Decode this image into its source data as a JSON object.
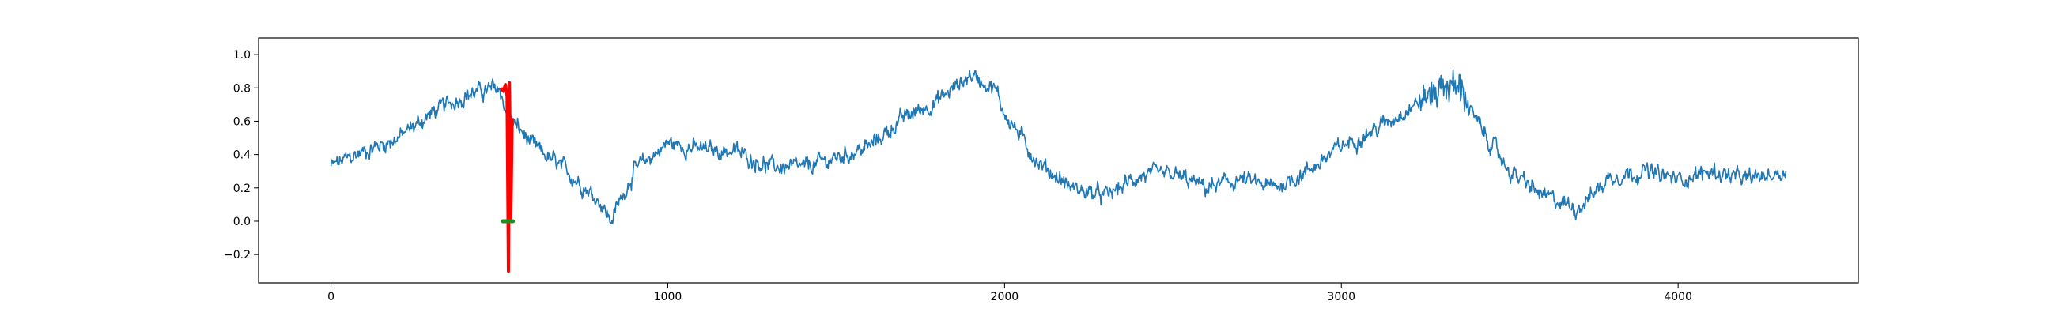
{
  "chart_data": {
    "type": "line",
    "title": "",
    "xlabel": "",
    "ylabel": "",
    "xlim": [
      -215,
      4535
    ],
    "ylim": [
      -0.37,
      1.1
    ],
    "grid": false,
    "legend": "none",
    "x_ticks": [
      0,
      1000,
      2000,
      3000,
      4000
    ],
    "x_tick_labels": [
      "0",
      "1000",
      "2000",
      "3000",
      "4000"
    ],
    "y_ticks": [
      -0.2,
      0.0,
      0.2,
      0.4,
      0.6,
      0.8,
      1.0
    ],
    "y_tick_labels": [
      "−0.2",
      "0.0",
      "0.2",
      "0.4",
      "0.6",
      "0.8",
      "1.0"
    ],
    "series": [
      {
        "color": "#1f77b4",
        "style": "noisy-line",
        "x_range": [
          0,
          4320
        ],
        "trend": [
          [
            0,
            0.33
          ],
          [
            100,
            0.42
          ],
          [
            200,
            0.5
          ],
          [
            300,
            0.65
          ],
          [
            400,
            0.76
          ],
          [
            500,
            0.8
          ],
          [
            525,
            0.62
          ],
          [
            560,
            0.55
          ],
          [
            600,
            0.45
          ],
          [
            700,
            0.3
          ],
          [
            800,
            0.12
          ],
          [
            830,
            0.0
          ],
          [
            900,
            0.3
          ],
          [
            1000,
            0.47
          ],
          [
            1100,
            0.43
          ],
          [
            1200,
            0.42
          ],
          [
            1300,
            0.33
          ],
          [
            1400,
            0.32
          ],
          [
            1500,
            0.38
          ],
          [
            1600,
            0.45
          ],
          [
            1700,
            0.62
          ],
          [
            1800,
            0.72
          ],
          [
            1900,
            0.88
          ],
          [
            1970,
            0.8
          ],
          [
            2000,
            0.65
          ],
          [
            2100,
            0.35
          ],
          [
            2200,
            0.2
          ],
          [
            2300,
            0.15
          ],
          [
            2400,
            0.27
          ],
          [
            2500,
            0.28
          ],
          [
            2600,
            0.2
          ],
          [
            2700,
            0.25
          ],
          [
            2800,
            0.2
          ],
          [
            2900,
            0.3
          ],
          [
            3000,
            0.45
          ],
          [
            3100,
            0.55
          ],
          [
            3200,
            0.68
          ],
          [
            3300,
            0.8
          ],
          [
            3350,
            0.82
          ],
          [
            3400,
            0.6
          ],
          [
            3500,
            0.3
          ],
          [
            3600,
            0.15
          ],
          [
            3700,
            0.08
          ],
          [
            3750,
            0.17
          ],
          [
            3800,
            0.27
          ],
          [
            3900,
            0.3
          ],
          [
            4000,
            0.25
          ],
          [
            4100,
            0.3
          ],
          [
            4200,
            0.25
          ],
          [
            4320,
            0.3
          ]
        ]
      },
      {
        "color": "#ff0000",
        "style": "thick-line",
        "points": [
          [
            505,
            0.8
          ],
          [
            512,
            0.78
          ],
          [
            518,
            0.82
          ],
          [
            523,
            0.75
          ],
          [
            527,
            -0.3
          ],
          [
            530,
            0.83
          ],
          [
            534,
            0.0
          ],
          [
            538,
            0.62
          ]
        ]
      },
      {
        "color": "#228b22",
        "style": "thick-segment",
        "points": [
          [
            510,
            0.0
          ],
          [
            540,
            0.0
          ]
        ]
      }
    ]
  }
}
